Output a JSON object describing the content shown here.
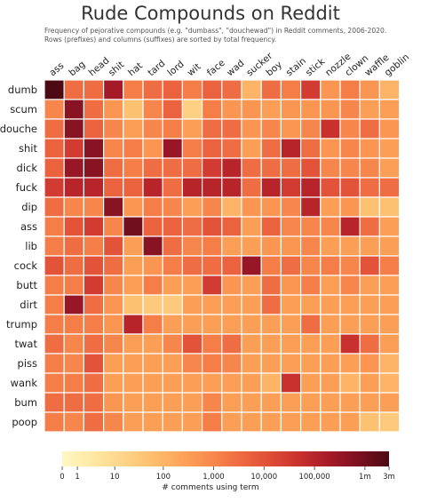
{
  "chart_data": {
    "type": "heatmap",
    "title": "Rude Compounds on Reddit",
    "subtitle_lines": [
      "Frequency of pejorative compounds (e.g. \"dumbass\", \"douchewad\") in Reddit comments, 2006-2020.",
      "Rows (prefixes) and columns (suffixes) are sorted by total frequency."
    ],
    "columns": [
      "ass",
      "bag",
      "head",
      "shit",
      "hat",
      "tard",
      "lord",
      "wit",
      "face",
      "wad",
      "sucker",
      "boy",
      "stain",
      "stick",
      "nozzle",
      "clown",
      "waffle",
      "goblin"
    ],
    "rows": [
      "dumb",
      "scum",
      "douche",
      "shit",
      "dick",
      "fuck",
      "dip",
      "ass",
      "lib",
      "cock",
      "butt",
      "dirt",
      "trump",
      "twat",
      "piss",
      "wank",
      "bum",
      "poop"
    ],
    "values": [
      [
        3000000,
        3000,
        3000,
        200000,
        1500,
        3000,
        5000,
        1500,
        5000,
        3000,
        100,
        3000,
        1500,
        30000,
        500,
        1500,
        500,
        100
      ],
      [
        1000,
        500000,
        3000,
        500,
        50,
        1000,
        5000,
        20,
        1500,
        500,
        500,
        300,
        500,
        500,
        500,
        1000,
        300,
        300
      ],
      [
        3000,
        500000,
        5000,
        1000,
        300,
        1000,
        1500,
        300,
        3000,
        3000,
        500,
        1000,
        500,
        1000,
        50000,
        1000,
        3000,
        500
      ],
      [
        5000,
        30000,
        500000,
        1000,
        1500,
        500,
        300000,
        1500,
        5000,
        3000,
        300,
        3000,
        100000,
        3000,
        500,
        1000,
        500,
        300
      ],
      [
        5000,
        300000,
        500000,
        3000,
        1500,
        3000,
        3000,
        3000,
        30000,
        100000,
        3000,
        3000,
        3000,
        10000,
        1000,
        1000,
        1000,
        300
      ],
      [
        30000,
        100000,
        100000,
        5000,
        5000,
        100000,
        3000,
        100000,
        100000,
        100000,
        3000,
        100000,
        30000,
        100000,
        10000,
        10000,
        3000,
        3000
      ],
      [
        3000,
        1000,
        1000,
        500000,
        500,
        1500,
        1000,
        300,
        1000,
        100,
        500,
        500,
        1000,
        100000,
        300,
        500,
        50,
        50
      ],
      [
        1500,
        10000,
        30000,
        1000,
        1000000,
        5000,
        5000,
        3000,
        10000,
        5000,
        300,
        5000,
        1000,
        1000,
        1000,
        100000,
        3000,
        300
      ],
      [
        1500,
        3000,
        1500,
        10000,
        300,
        500000,
        3000,
        1000,
        1500,
        300,
        300,
        500,
        500,
        1000,
        300,
        300,
        300,
        300
      ],
      [
        10000,
        3000,
        10000,
        3000,
        300,
        500,
        1500,
        3000,
        3000,
        5000,
        300000,
        1500,
        3000,
        1000,
        1500,
        1000,
        10000,
        1500
      ],
      [
        1500,
        1500,
        30000,
        1000,
        300,
        1500,
        300,
        300,
        30000,
        500,
        300,
        3000,
        500,
        1500,
        300,
        1000,
        300,
        300
      ],
      [
        1500,
        300000,
        3000,
        500,
        50,
        30,
        30,
        300,
        300,
        300,
        300,
        3000,
        300,
        300,
        300,
        300,
        300,
        300
      ],
      [
        1500,
        1500,
        1500,
        500,
        100000,
        1500,
        300,
        300,
        300,
        300,
        300,
        300,
        300,
        3000,
        300,
        300,
        300,
        300
      ],
      [
        3000,
        1000,
        3000,
        1000,
        300,
        300,
        1000,
        10000,
        1500,
        3000,
        300,
        300,
        300,
        300,
        300,
        50000,
        3000,
        300
      ],
      [
        1500,
        1000,
        10000,
        300,
        300,
        300,
        300,
        1000,
        1500,
        1000,
        300,
        300,
        300,
        300,
        300,
        300,
        500,
        100
      ],
      [
        1500,
        1500,
        3000,
        300,
        300,
        300,
        300,
        300,
        300,
        300,
        300,
        100,
        50000,
        300,
        300,
        100,
        300,
        100
      ],
      [
        3000,
        3000,
        3000,
        500,
        300,
        300,
        300,
        300,
        1000,
        300,
        300,
        300,
        300,
        300,
        300,
        300,
        300,
        300
      ],
      [
        1500,
        1000,
        3000,
        1000,
        300,
        300,
        300,
        300,
        1500,
        300,
        300,
        300,
        300,
        300,
        300,
        300,
        50,
        30
      ]
    ],
    "colorbar": {
      "label": "# comments using term",
      "scale": "log",
      "tick_values": [
        0,
        1,
        10,
        100,
        1000,
        10000,
        100000,
        1000000,
        3000000
      ],
      "tick_labels": [
        "0",
        "1",
        "10",
        "100",
        "1,000",
        "10,000",
        "100,000",
        "1m",
        "3m"
      ],
      "max": 3000000
    },
    "colors": [
      "#fff7c4",
      "#fde9a4",
      "#fdd58b",
      "#fdbf6f",
      "#fca55a",
      "#f8894d",
      "#ee6a41",
      "#df4d37",
      "#c8302d",
      "#a51a28",
      "#7a1020",
      "#4d0a14"
    ]
  }
}
